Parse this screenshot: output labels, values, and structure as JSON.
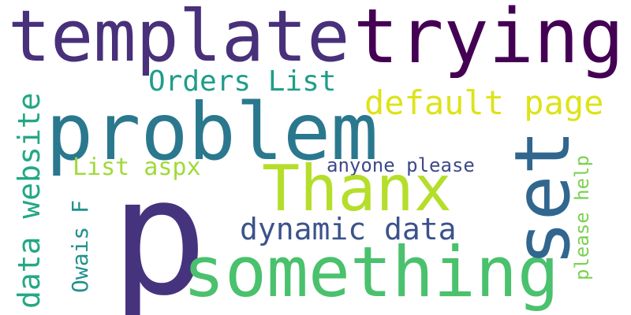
{
  "words": [
    {
      "text": "template",
      "color": "#48307a"
    },
    {
      "text": "trying",
      "color": "#440154"
    },
    {
      "text": "Orders List",
      "color": "#1f9d8a"
    },
    {
      "text": "default page",
      "color": "#dde318"
    },
    {
      "text": "problem",
      "color": "#2a788e"
    },
    {
      "text": "List aspx",
      "color": "#a0da39"
    },
    {
      "text": "anyone please",
      "color": "#3e4989"
    },
    {
      "text": "Thanx",
      "color": "#b5de2b"
    },
    {
      "text": "set",
      "color": "#31668e"
    },
    {
      "text": "dynamic data",
      "color": "#3b528b"
    },
    {
      "text": "p",
      "color": "#46337e"
    },
    {
      "text": "something",
      "color": "#4ac16d"
    },
    {
      "text": "data website",
      "color": "#22a884"
    },
    {
      "text": "Owais F",
      "color": "#21918c"
    },
    {
      "text": "please help",
      "color": "#7ad151"
    }
  ]
}
